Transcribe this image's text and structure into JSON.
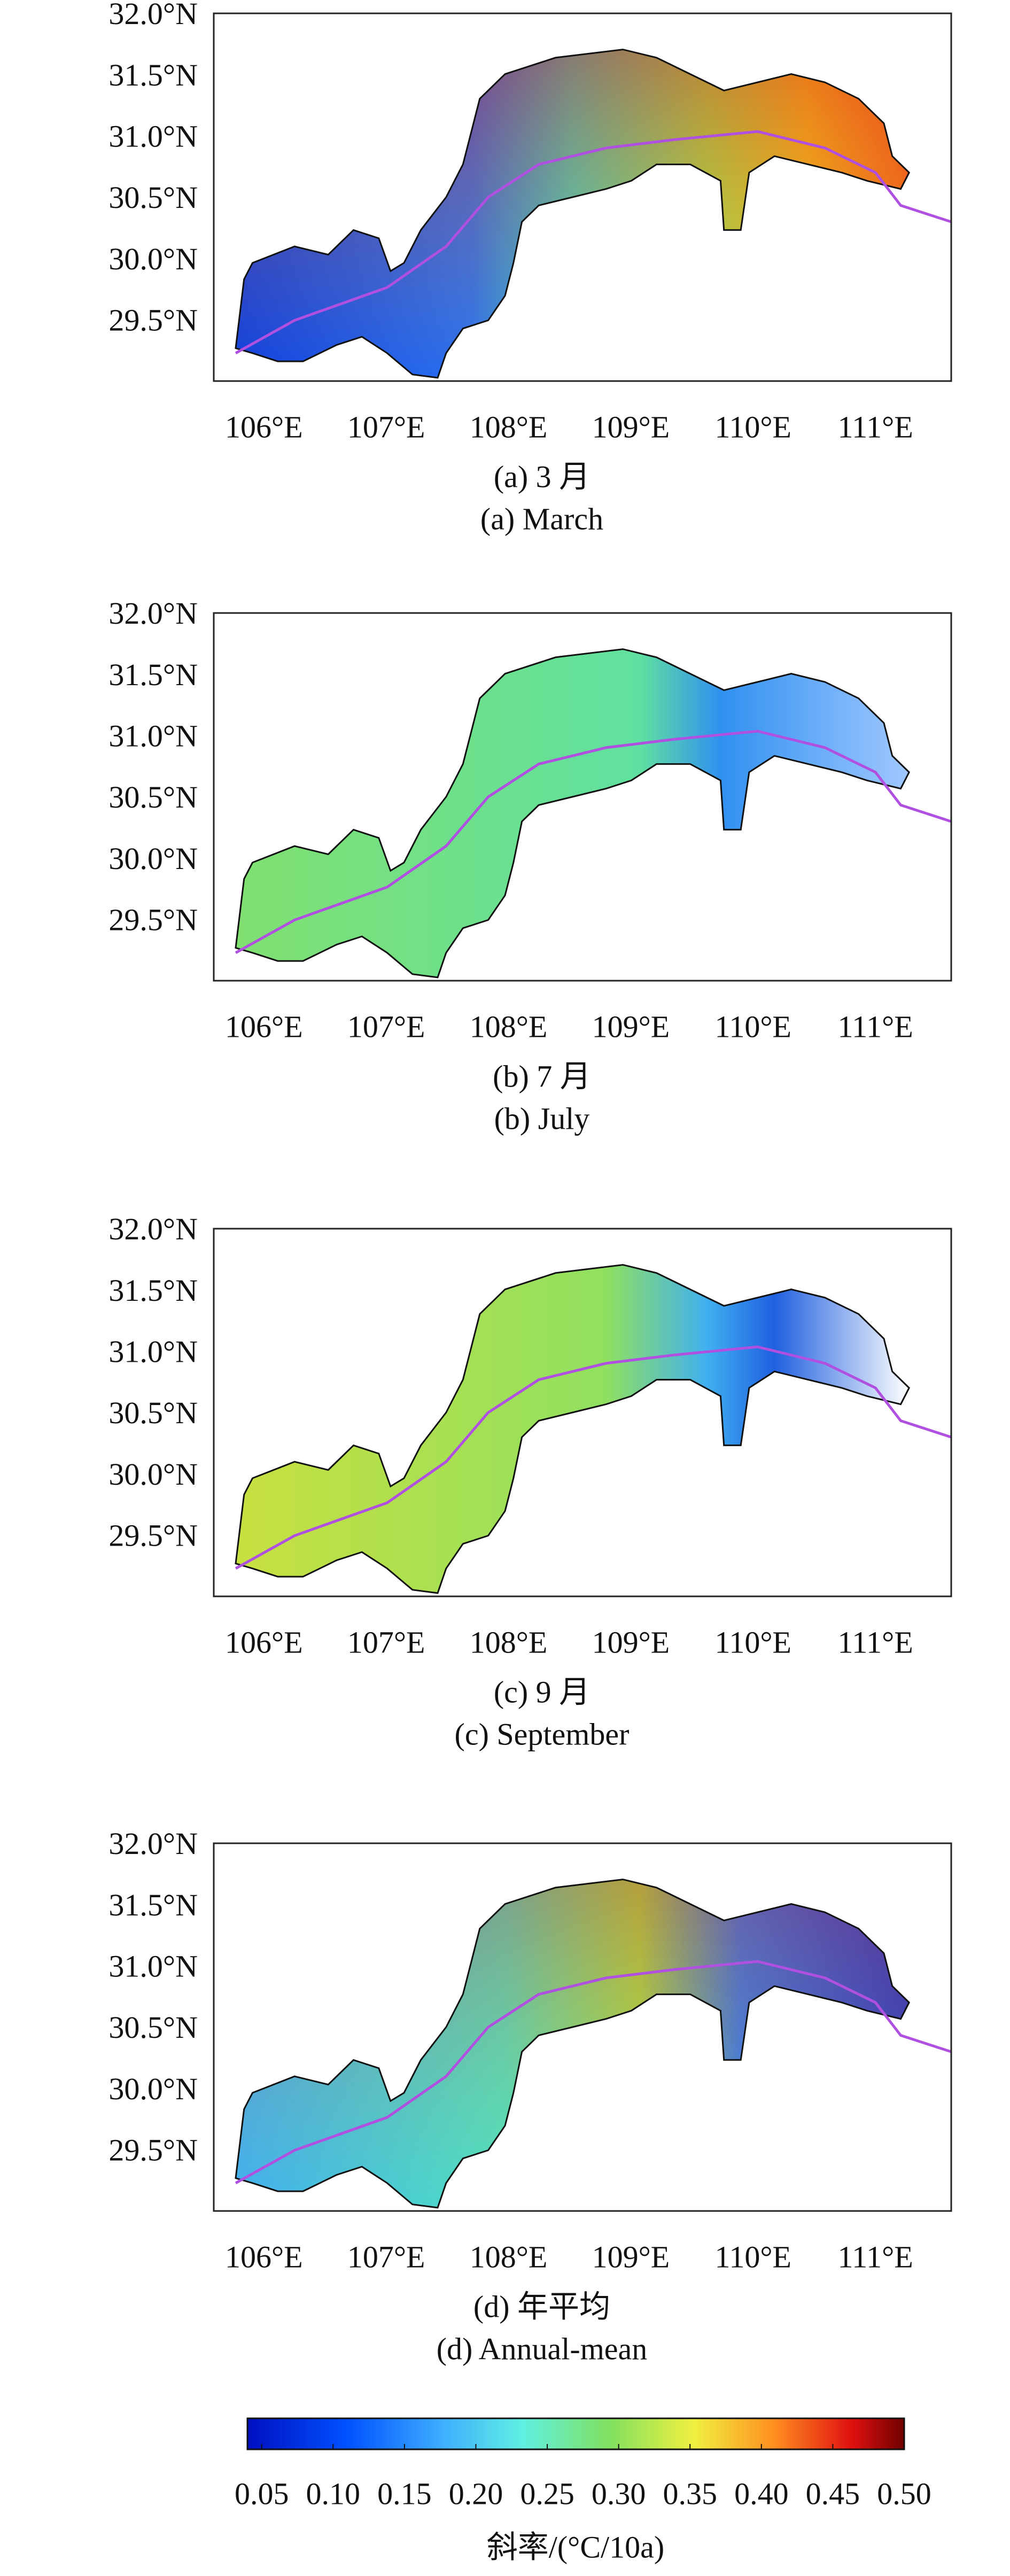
{
  "extent": {
    "xlim": [
      105.59,
      111.62
    ],
    "ylim": [
      29.03,
      32.03
    ]
  },
  "panels": [
    {
      "caption_cn": "(a) 3 月",
      "caption_en": "(a) March",
      "xticks": [
        {
          "value": 106,
          "label": "106°E"
        },
        {
          "value": 107,
          "label": "107°E"
        },
        {
          "value": 108,
          "label": "108°E"
        },
        {
          "value": 109,
          "label": "109°E"
        },
        {
          "value": 110,
          "label": "110°E"
        },
        {
          "value": 111,
          "label": "111°E"
        }
      ],
      "yticks": [
        {
          "value": 29.5,
          "label": "29.5°N"
        },
        {
          "value": 30.0,
          "label": "30.0°N"
        },
        {
          "value": 30.5,
          "label": "30.5°N"
        },
        {
          "value": 31.0,
          "label": "31.0°N"
        },
        {
          "value": 31.5,
          "label": "31.5°N"
        },
        {
          "value": 32.0,
          "label": "32.0°N"
        }
      ]
    },
    {
      "caption_cn": "(b) 7 月",
      "caption_en": "(b) July",
      "xticks": [
        {
          "value": 106,
          "label": "106°E"
        },
        {
          "value": 107,
          "label": "107°E"
        },
        {
          "value": 108,
          "label": "108°E"
        },
        {
          "value": 109,
          "label": "109°E"
        },
        {
          "value": 110,
          "label": "110°E"
        },
        {
          "value": 111,
          "label": "111°E"
        }
      ],
      "yticks": [
        {
          "value": 29.5,
          "label": "29.5°N"
        },
        {
          "value": 30.0,
          "label": "30.0°N"
        },
        {
          "value": 30.5,
          "label": "30.5°N"
        },
        {
          "value": 31.0,
          "label": "31.0°N"
        },
        {
          "value": 31.5,
          "label": "31.5°N"
        },
        {
          "value": 32.0,
          "label": "32.0°N"
        }
      ]
    },
    {
      "caption_cn": "(c) 9 月",
      "caption_en": "(c) September",
      "xticks": [
        {
          "value": 106,
          "label": "106°E"
        },
        {
          "value": 107,
          "label": "107°E"
        },
        {
          "value": 108,
          "label": "108°E"
        },
        {
          "value": 109,
          "label": "109°E"
        },
        {
          "value": 110,
          "label": "110°E"
        },
        {
          "value": 111,
          "label": "111°E"
        }
      ],
      "yticks": [
        {
          "value": 29.5,
          "label": "29.5°N"
        },
        {
          "value": 30.0,
          "label": "30.0°N"
        },
        {
          "value": 30.5,
          "label": "30.5°N"
        },
        {
          "value": 31.0,
          "label": "31.0°N"
        },
        {
          "value": 31.5,
          "label": "31.5°N"
        },
        {
          "value": 32.0,
          "label": "32.0°N"
        }
      ]
    },
    {
      "caption_cn": "(d) 年平均",
      "caption_en": "(d) Annual-mean",
      "xticks": [
        {
          "value": 106,
          "label": "106°E"
        },
        {
          "value": 107,
          "label": "107°E"
        },
        {
          "value": 108,
          "label": "108°E"
        },
        {
          "value": 109,
          "label": "109°E"
        },
        {
          "value": 110,
          "label": "110°E"
        },
        {
          "value": 111,
          "label": "111°E"
        }
      ],
      "yticks": [
        {
          "value": 29.5,
          "label": "29.5°N"
        },
        {
          "value": 30.0,
          "label": "30.0°N"
        },
        {
          "value": 30.5,
          "label": "30.5°N"
        },
        {
          "value": 31.0,
          "label": "31.0°N"
        },
        {
          "value": 31.5,
          "label": "31.5°N"
        },
        {
          "value": 32.0,
          "label": "32.0°N"
        }
      ]
    }
  ],
  "colorbar": {
    "range": [
      0.04,
      0.5
    ],
    "ticks": [
      {
        "value": 0.05,
        "label": "0.05"
      },
      {
        "value": 0.1,
        "label": "0.10"
      },
      {
        "value": 0.15,
        "label": "0.15"
      },
      {
        "value": 0.2,
        "label": "0.20"
      },
      {
        "value": 0.25,
        "label": "0.25"
      },
      {
        "value": 0.3,
        "label": "0.30"
      },
      {
        "value": 0.35,
        "label": "0.35"
      },
      {
        "value": 0.4,
        "label": "0.40"
      },
      {
        "value": 0.45,
        "label": "0.45"
      },
      {
        "value": 0.5,
        "label": "0.50"
      }
    ],
    "label": "斜率/(°C/10a)"
  }
}
